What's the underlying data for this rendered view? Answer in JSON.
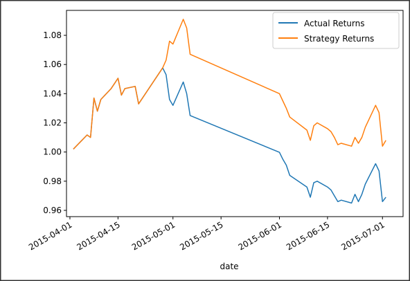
{
  "chart_data": {
    "type": "line",
    "x_label": "date",
    "x": [
      "2015-04-02",
      "2015-04-06",
      "2015-04-07",
      "2015-04-08",
      "2015-04-09",
      "2015-04-10",
      "2015-04-13",
      "2015-04-14",
      "2015-04-15",
      "2015-04-16",
      "2015-04-17",
      "2015-04-20",
      "2015-04-21",
      "2015-04-28",
      "2015-04-29",
      "2015-04-30",
      "2015-05-01",
      "2015-05-04",
      "2015-05-05",
      "2015-05-06",
      "2015-06-01",
      "2015-06-02",
      "2015-06-03",
      "2015-06-04",
      "2015-06-09",
      "2015-06-10",
      "2015-06-11",
      "2015-06-12",
      "2015-06-15",
      "2015-06-16",
      "2015-06-17",
      "2015-06-18",
      "2015-06-19",
      "2015-06-22",
      "2015-06-23",
      "2015-06-24",
      "2015-06-25",
      "2015-06-26",
      "2015-06-29",
      "2015-06-30",
      "2015-07-01",
      "2015-07-02"
    ],
    "series": [
      {
        "name": "Actual Returns",
        "color": "#1f77b4",
        "values": [
          1.002,
          1.0117,
          1.01,
          1.037,
          1.028,
          1.036,
          1.0435,
          1.047,
          1.0506,
          1.039,
          1.0435,
          1.045,
          1.033,
          1.0577,
          1.053,
          1.036,
          1.032,
          1.048,
          1.04,
          1.025,
          0.9998,
          0.995,
          0.991,
          0.984,
          0.976,
          0.969,
          0.979,
          0.98,
          0.976,
          0.974,
          0.97,
          0.966,
          0.967,
          0.965,
          0.971,
          0.966,
          0.971,
          0.978,
          0.992,
          0.987,
          0.966,
          0.969
        ]
      },
      {
        "name": "Strategy Returns",
        "color": "#ff7f0e",
        "values": [
          1.002,
          1.0117,
          1.01,
          1.037,
          1.028,
          1.036,
          1.0435,
          1.047,
          1.0506,
          1.039,
          1.0435,
          1.045,
          1.033,
          1.0577,
          1.063,
          1.076,
          1.074,
          1.091,
          1.085,
          1.067,
          1.04,
          1.035,
          1.03,
          1.024,
          1.015,
          1.008,
          1.018,
          1.02,
          1.016,
          1.014,
          1.01,
          1.005,
          1.006,
          1.004,
          1.01,
          1.006,
          1.01,
          1.017,
          1.032,
          1.027,
          1.004,
          1.008
        ]
      }
    ],
    "xlim": [
      "2015-03-31",
      "2015-07-07"
    ],
    "xticks": [
      "2015-04-01",
      "2015-04-15",
      "2015-05-01",
      "2015-05-15",
      "2015-06-01",
      "2015-06-15",
      "2015-07-01"
    ],
    "ylim": [
      0.9557,
      1.0971
    ],
    "yticks": [
      {
        "value": 0.96,
        "label": "0.96"
      },
      {
        "value": 0.98,
        "label": "0.98"
      },
      {
        "value": 1.0,
        "label": "1.00"
      },
      {
        "value": 1.02,
        "label": "1.02"
      },
      {
        "value": 1.04,
        "label": "1.04"
      },
      {
        "value": 1.06,
        "label": "1.06"
      },
      {
        "value": 1.08,
        "label": "1.08"
      }
    ],
    "grid": false,
    "legend": "upper right"
  }
}
